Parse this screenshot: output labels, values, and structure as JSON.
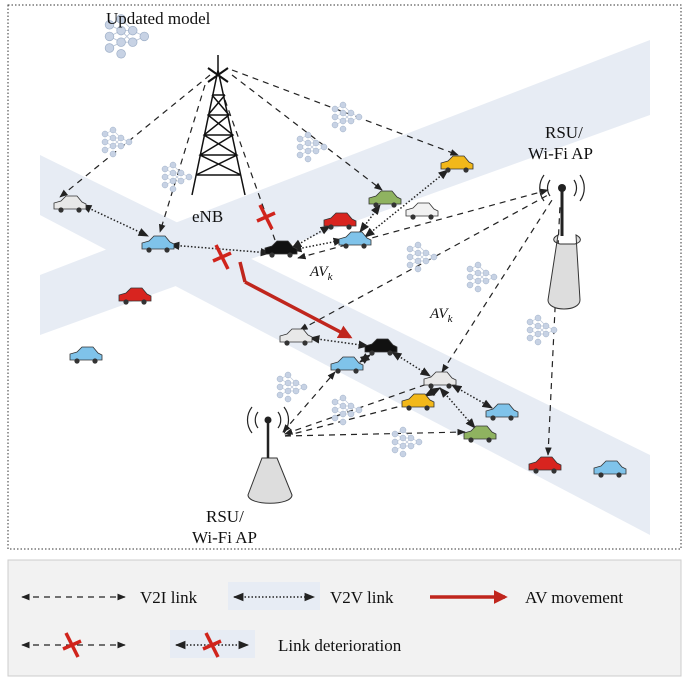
{
  "labels": {
    "model": "Updated model",
    "enb": "eNB",
    "rsu_right": [
      "RSU/",
      "Wi-Fi AP"
    ],
    "rsu_left": [
      "RSU/",
      "Wi-Fi AP"
    ],
    "av_top": {
      "main": "AV",
      "sub": "k"
    },
    "av_mid": {
      "main": "AV",
      "sub": "k"
    }
  },
  "legend": {
    "v2i": "V2I link",
    "v2v": "V2V link",
    "movement": "AV movement",
    "deterioration": "Link deterioration"
  }
}
